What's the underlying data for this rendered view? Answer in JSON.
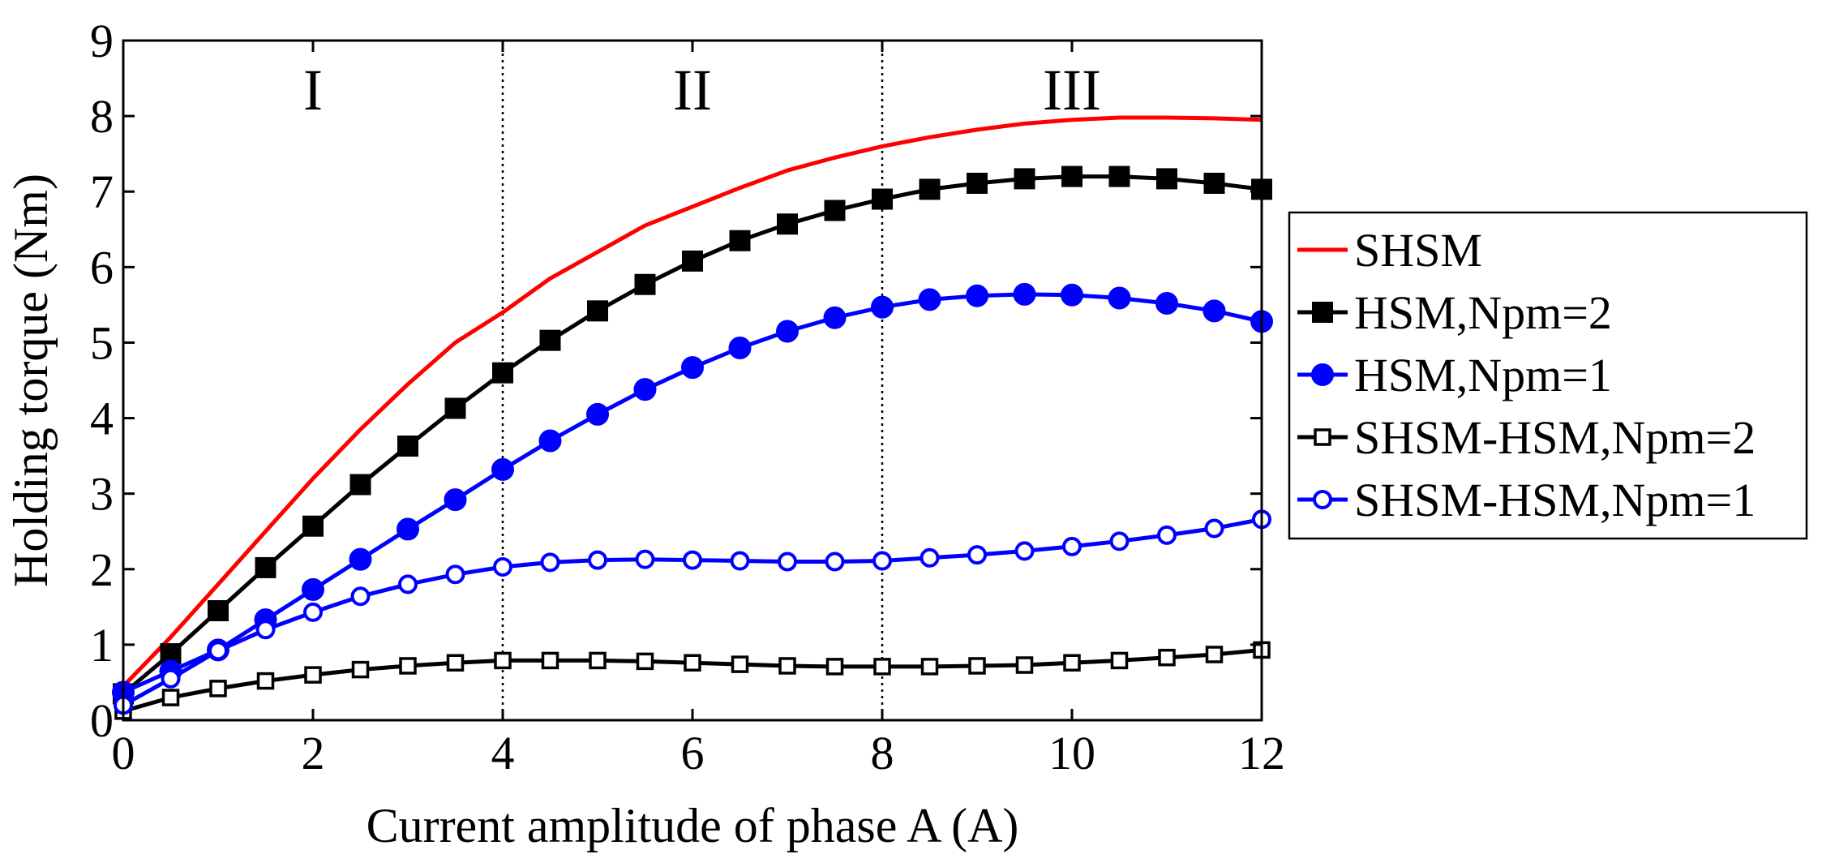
{
  "chart_data": {
    "type": "line",
    "title": "",
    "xlabel": "Current amplitude of phase A (A)",
    "ylabel": "Holding torque (Nm)",
    "xlim": [
      0,
      12
    ],
    "ylim": [
      0,
      9
    ],
    "xticks": [
      0,
      2,
      4,
      6,
      8,
      10,
      12
    ],
    "yticks": [
      0,
      1,
      2,
      3,
      4,
      5,
      6,
      7,
      8,
      9
    ],
    "grid": false,
    "legend_position": "right-outside",
    "region_dividers": [
      4,
      8
    ],
    "regions": [
      {
        "label": "I",
        "x": 2
      },
      {
        "label": "II",
        "x": 6
      },
      {
        "label": "III",
        "x": 10
      }
    ],
    "x": [
      0,
      0.5,
      1,
      1.5,
      2,
      2.5,
      3,
      3.5,
      4,
      4.5,
      5,
      5.5,
      6,
      6.5,
      7,
      7.5,
      8,
      8.5,
      9,
      9.5,
      10,
      10.5,
      11,
      11.5,
      12
    ],
    "series": [
      {
        "name": "SHSM",
        "color": "#ff0000",
        "marker": "none",
        "values": [
          0.45,
          1.1,
          1.8,
          2.5,
          3.2,
          3.85,
          4.45,
          5.0,
          5.4,
          5.85,
          6.2,
          6.55,
          6.8,
          7.05,
          7.28,
          7.45,
          7.6,
          7.72,
          7.82,
          7.9,
          7.95,
          7.98,
          7.98,
          7.97,
          7.95
        ]
      },
      {
        "name": "HSM,Npm=2",
        "color": "#000000",
        "marker": "filled-square",
        "values": [
          0.35,
          0.88,
          1.45,
          2.02,
          2.57,
          3.12,
          3.63,
          4.13,
          4.6,
          5.03,
          5.42,
          5.77,
          6.08,
          6.35,
          6.57,
          6.75,
          6.9,
          7.03,
          7.11,
          7.17,
          7.2,
          7.2,
          7.17,
          7.11,
          7.03
        ]
      },
      {
        "name": "HSM,Npm=1",
        "color": "#0000ff",
        "marker": "filled-circle",
        "values": [
          0.37,
          0.65,
          0.93,
          1.33,
          1.73,
          2.13,
          2.53,
          2.92,
          3.32,
          3.7,
          4.05,
          4.38,
          4.67,
          4.93,
          5.15,
          5.33,
          5.47,
          5.57,
          5.62,
          5.64,
          5.63,
          5.59,
          5.52,
          5.42,
          5.28
        ]
      },
      {
        "name": "SHSM-HSM,Npm=2",
        "color": "#000000",
        "marker": "open-square",
        "values": [
          0.12,
          0.3,
          0.42,
          0.52,
          0.6,
          0.67,
          0.72,
          0.76,
          0.79,
          0.79,
          0.79,
          0.78,
          0.76,
          0.74,
          0.72,
          0.71,
          0.71,
          0.71,
          0.72,
          0.73,
          0.76,
          0.79,
          0.83,
          0.87,
          0.93
        ]
      },
      {
        "name": "SHSM-HSM,Npm=1",
        "color": "#0000ff",
        "marker": "open-circle",
        "values": [
          0.2,
          0.55,
          0.92,
          1.2,
          1.43,
          1.64,
          1.8,
          1.93,
          2.03,
          2.09,
          2.12,
          2.13,
          2.12,
          2.11,
          2.1,
          2.1,
          2.11,
          2.15,
          2.19,
          2.24,
          2.3,
          2.37,
          2.45,
          2.54,
          2.66
        ]
      }
    ]
  }
}
